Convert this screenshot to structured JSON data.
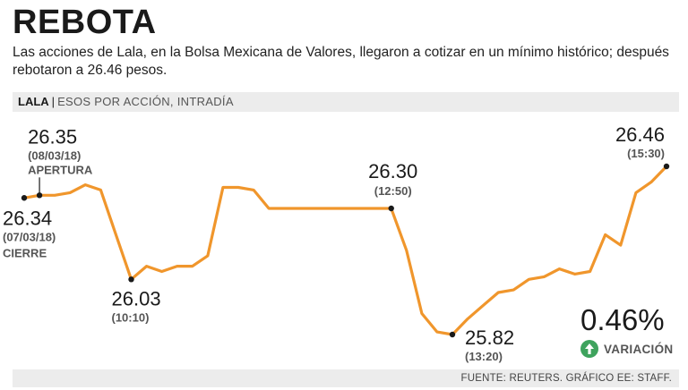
{
  "header": {
    "title": "REBOTA",
    "subtitle": "Las acciones de Lala, en la Bolsa Mexicana de Valores, llegaron a cotizar en un mínimo histórico; después rebotaron a 26.46 pesos."
  },
  "label_bar": {
    "ticker": "LALA",
    "separator": "|",
    "description": "ESOS POR ACCIÓN, INTRADÍA"
  },
  "variation": {
    "value": "0.46%",
    "label": "VARIACIÓN",
    "icon": "up-arrow-circle-icon",
    "icon_color": "#3ea35d"
  },
  "footer": {
    "source": "FUENTE: REUTERS. GRÁFICO EE: STAFF."
  },
  "colors": {
    "line": "#f0962c",
    "marker": "#1a1a1a",
    "annotation_text": "#1a1a1a",
    "annotation_subtext": "#555555"
  },
  "chart_data": {
    "type": "line",
    "title": "",
    "xlabel": "",
    "ylabel": "",
    "series": [
      {
        "name": "",
        "values": [
          26.34,
          26.35,
          26.35,
          26.36,
          26.39,
          26.37,
          26.2,
          26.03,
          26.08,
          26.06,
          26.08,
          26.08,
          26.12,
          26.38,
          26.38,
          26.37,
          26.3,
          26.3,
          26.3,
          26.3,
          26.3,
          26.3,
          26.3,
          26.3,
          26.3,
          26.14,
          25.9,
          25.83,
          25.82,
          25.88,
          25.93,
          25.98,
          25.99,
          26.03,
          26.04,
          26.07,
          26.05,
          26.06,
          26.2,
          26.16,
          26.36,
          26.4,
          26.46
        ]
      }
    ],
    "annotations": [
      {
        "point_index": 1,
        "value": "26.35",
        "sub": "(08/03/18)",
        "label": "APERTURA"
      },
      {
        "point_index": 0,
        "value": "26.34",
        "sub": "(07/03/18)",
        "label": "CIERRE"
      },
      {
        "point_index": 7,
        "value": "26.03",
        "sub": "(10:10)",
        "label": ""
      },
      {
        "point_index": 24,
        "value": "26.30",
        "sub": "(12:50)",
        "label": ""
      },
      {
        "point_index": 28,
        "value": "25.82",
        "sub": "(13:20)",
        "label": ""
      },
      {
        "point_index": 42,
        "value": "26.46",
        "sub": "(15:30)",
        "label": ""
      }
    ]
  }
}
